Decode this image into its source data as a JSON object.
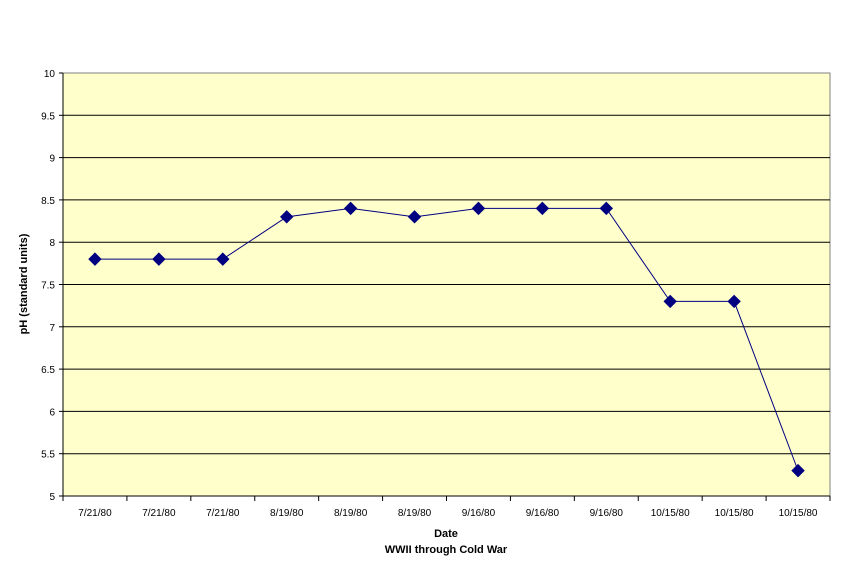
{
  "chart_data": {
    "type": "line",
    "title": "",
    "xlabel": "Date",
    "xlabel_sub": "WWII through Cold War",
    "ylabel": "pH (standard units)",
    "ylim": [
      5,
      10
    ],
    "y_ticks": [
      "5",
      "5.5",
      "6",
      "6.5",
      "7",
      "7.5",
      "8",
      "8.5",
      "9",
      "9.5",
      "10"
    ],
    "categories": [
      "7/21/80",
      "7/21/80",
      "7/21/80",
      "8/19/80",
      "8/19/80",
      "8/19/80",
      "9/16/80",
      "9/16/80",
      "9/16/80",
      "10/15/80",
      "10/15/80",
      "10/15/80"
    ],
    "series": [
      {
        "values": [
          7.8,
          7.8,
          7.8,
          8.3,
          8.4,
          8.3,
          8.4,
          8.4,
          8.4,
          7.3,
          7.3,
          5.3
        ]
      }
    ],
    "grid": true,
    "legend": "none",
    "colors": {
      "plot_background": "#ffffcc",
      "line": "#000080",
      "marker": "#000080",
      "gridline": "#000000"
    },
    "marker": "diamond"
  }
}
